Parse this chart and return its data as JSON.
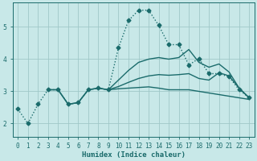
{
  "xlabel": "Humidex (Indice chaleur)",
  "background_color": "#c8e8e8",
  "grid_color": "#a0c8c8",
  "line_color": "#1a6b6b",
  "xlim": [
    -0.5,
    23.5
  ],
  "ylim": [
    1.6,
    5.75
  ],
  "xticks": [
    0,
    1,
    2,
    3,
    4,
    5,
    6,
    7,
    8,
    9,
    10,
    11,
    12,
    13,
    14,
    15,
    16,
    17,
    18,
    19,
    20,
    21,
    22,
    23
  ],
  "yticks": [
    2,
    3,
    4,
    5
  ],
  "lines": [
    {
      "x": [
        0,
        1,
        2,
        3,
        4,
        5,
        6,
        7,
        8,
        9,
        10,
        11,
        12,
        13,
        14,
        15,
        16,
        17,
        18,
        19,
        20,
        21,
        22,
        23
      ],
      "y": [
        2.45,
        2.0,
        2.6,
        3.05,
        3.05,
        2.6,
        2.65,
        3.05,
        3.1,
        3.05,
        4.35,
        5.2,
        5.52,
        5.52,
        5.05,
        4.45,
        4.45,
        3.82,
        4.02,
        3.55,
        3.55,
        3.45,
        3.05,
        2.8
      ],
      "linestyle": ":",
      "marker": "D",
      "markersize": 2.5,
      "linewidth": 1.0
    },
    {
      "x": [
        9,
        10,
        11,
        12,
        13,
        14,
        15,
        16,
        17,
        18,
        19,
        20,
        21,
        22,
        23
      ],
      "y": [
        3.05,
        3.35,
        3.65,
        3.9,
        4.0,
        4.05,
        4.0,
        4.05,
        4.3,
        3.9,
        3.75,
        3.85,
        3.6,
        3.1,
        2.8
      ],
      "linestyle": "-",
      "marker": null,
      "markersize": 0,
      "linewidth": 1.0
    },
    {
      "x": [
        3,
        4,
        5,
        6,
        7,
        8,
        9,
        10,
        11,
        12,
        13,
        14,
        15,
        16,
        17,
        18,
        19,
        20,
        21,
        22,
        23
      ],
      "y": [
        3.05,
        3.05,
        2.6,
        2.65,
        3.05,
        3.1,
        3.05,
        3.15,
        3.28,
        3.4,
        3.48,
        3.52,
        3.5,
        3.52,
        3.55,
        3.4,
        3.35,
        3.58,
        3.48,
        3.1,
        2.8
      ],
      "linestyle": "-",
      "marker": null,
      "markersize": 0,
      "linewidth": 1.0
    },
    {
      "x": [
        3,
        4,
        5,
        6,
        7,
        8,
        9,
        10,
        11,
        12,
        13,
        14,
        15,
        16,
        17,
        18,
        19,
        20,
        21,
        22,
        23
      ],
      "y": [
        3.05,
        3.05,
        2.6,
        2.65,
        3.05,
        3.1,
        3.05,
        3.08,
        3.1,
        3.12,
        3.14,
        3.1,
        3.05,
        3.05,
        3.05,
        3.0,
        2.95,
        2.9,
        2.85,
        2.8,
        2.75
      ],
      "linestyle": "-",
      "marker": null,
      "markersize": 0,
      "linewidth": 1.0
    }
  ]
}
